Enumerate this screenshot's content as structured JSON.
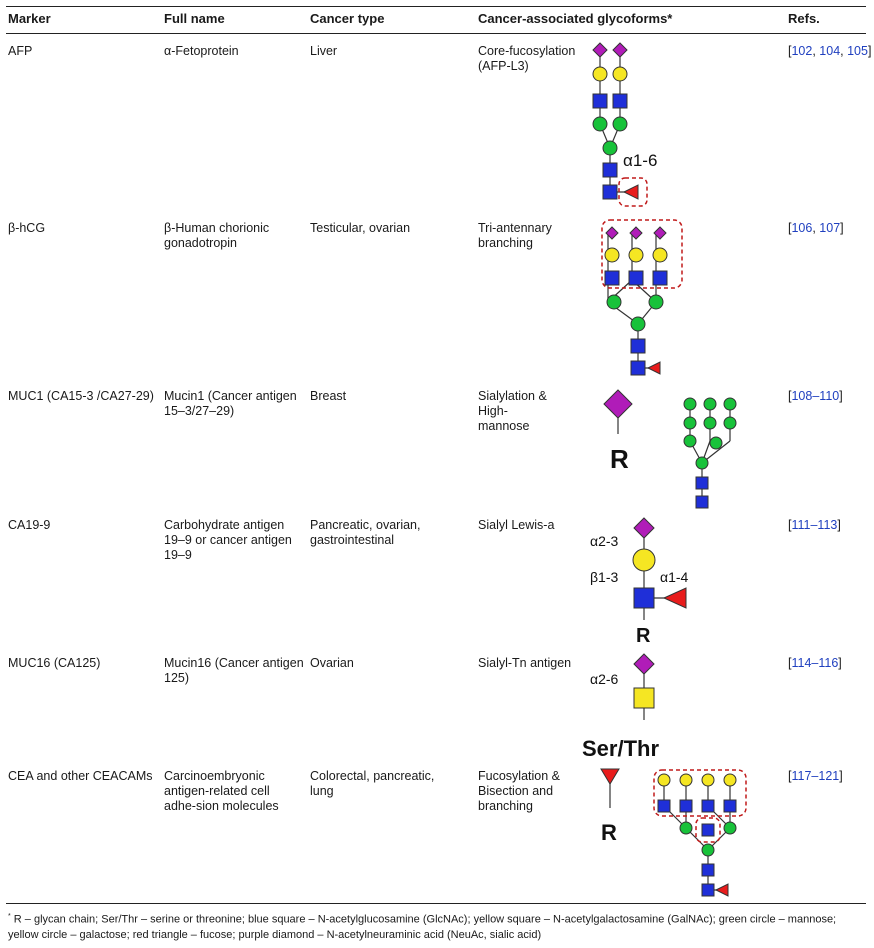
{
  "table": {
    "headers": {
      "marker": "Marker",
      "full_name": "Full name",
      "cancer_type": "Cancer type",
      "glycoforms": "Cancer-associated glycoforms*",
      "refs": "Refs."
    },
    "rows": [
      {
        "marker": "AFP",
        "full_name": "α-Fetoprotein",
        "cancer_type": "Liver",
        "glycoform": "Core-fucosylation (AFP-L3)",
        "glycan_label": "α1-6",
        "refs": {
          "open": "[",
          "r1": "102",
          "sep1": ", ",
          "r2": "104",
          "sep2": ", ",
          "r3": "105",
          "close": "]"
        }
      },
      {
        "marker": "β-hCG",
        "full_name": "β-Human chorionic gonadotropin",
        "cancer_type": "Testicular, ovarian",
        "glycoform": "Tri-antennary branching",
        "refs": {
          "open": "[",
          "r1": "106",
          "sep1": ", ",
          "r2": "107",
          "close": "]"
        }
      },
      {
        "marker": "MUC1 (CA15-3 /CA27-29)",
        "full_name": "Mucin1 (Cancer antigen 15–3/27–29)",
        "cancer_type": "Breast",
        "glycoform": "Sialylation & High-mannose",
        "glycan_label": "R",
        "refs": {
          "open": "[",
          "r1": "108–110",
          "close": "]"
        }
      },
      {
        "marker": "CA19-9",
        "full_name": "Carbohydrate antigen 19–9 or cancer antigen 19–9",
        "cancer_type": "Pancreatic, ovarian, gastrointestinal",
        "glycoform": "Sialyl Lewis-a",
        "glycan_labels": {
          "a": "α2-3",
          "b": "β1-3",
          "c": "α1-4",
          "r": "R"
        },
        "refs": {
          "open": "[",
          "r1": "111–113",
          "close": "]"
        }
      },
      {
        "marker": "MUC16 (CA125)",
        "full_name": "Mucin16 (Cancer antigen 125)",
        "cancer_type": "Ovarian",
        "glycoform": "Sialyl-Tn antigen",
        "glycan_labels": {
          "a": "α2-6",
          "r": "Ser/Thr"
        },
        "refs": {
          "open": "[",
          "r1": "114–116",
          "close": "]"
        }
      },
      {
        "marker": "CEA and other CEACAMs",
        "full_name": "Carcinoembryonic antigen-related cell adhe-sion molecules",
        "cancer_type": "Colorectal, pancreatic, lung",
        "glycoform": "Fucosylation & Bisection and branching",
        "glycan_label": "R",
        "refs": {
          "open": "[",
          "r1": "117–121",
          "close": "]"
        }
      }
    ],
    "footnote": {
      "mark": "*",
      "text": "R – glycan chain; Ser/Thr – serine or threonine; blue square – N-acetylglucosamine (GlcNAc); yellow square – N-acetylgalactosamine (GalNAc); green circle – mannose; yellow circle – galactose; red triangle – fucose; purple diamond – N-acetylneuraminic acid (NeuAc, sialic acid)"
    }
  },
  "colors": {
    "glcnac": "#1f2fd8",
    "galnac": "#f5e623",
    "mannose": "#18c23a",
    "galactose": "#f5e623",
    "fucose": "#e81c1c",
    "neuac": "#b01cb8",
    "link": "#1f3fbf"
  }
}
